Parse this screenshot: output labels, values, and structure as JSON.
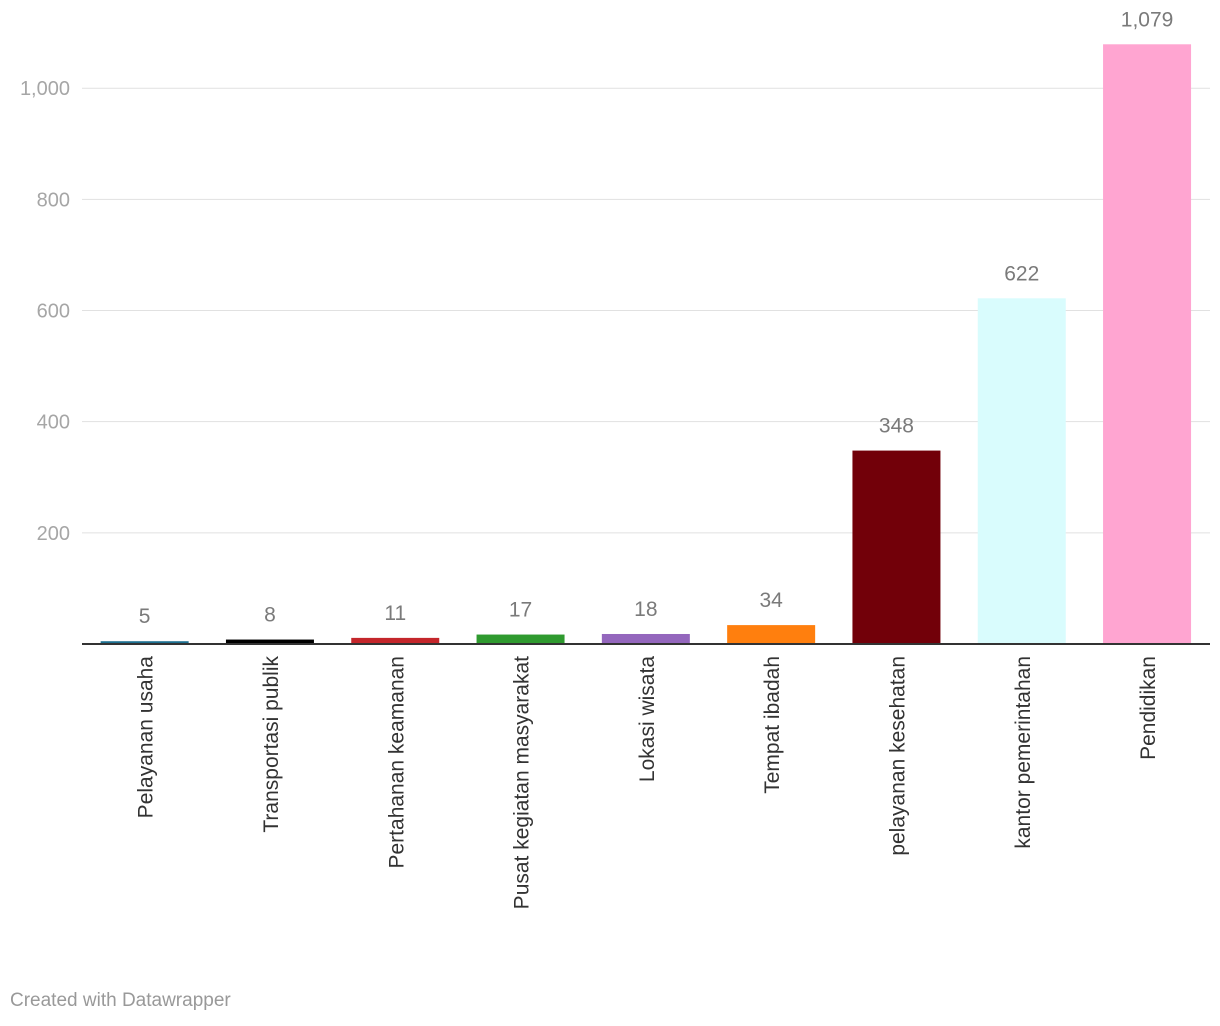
{
  "chart_data": {
    "type": "bar",
    "categories": [
      "Pelayanan usaha",
      "Transportasi publik",
      "Pertahanan keamanan",
      "Pusat kegiatan masyarakat",
      "Lokasi wisata",
      "Tempat ibadah",
      "pelayanan kesehatan",
      "kantor pemerintahan",
      "Pendidikan"
    ],
    "values": [
      5,
      8,
      11,
      17,
      18,
      34,
      348,
      622,
      1079
    ],
    "value_labels": [
      "5",
      "8",
      "11",
      "17",
      "18",
      "34",
      "348",
      "622",
      "1,079"
    ],
    "colors": [
      "#1d6f8f",
      "#000000",
      "#c4262b",
      "#2f9a2f",
      "#9467bd",
      "#ff7f0e",
      "#720009",
      "#d9fcfd",
      "#ffa5d1"
    ],
    "y_ticks": [
      200,
      400,
      600,
      800,
      1000
    ],
    "y_tick_labels": [
      "200",
      "400",
      "600",
      "800",
      "1,000"
    ],
    "ylim": [
      0,
      1079
    ],
    "grid": true
  },
  "footer": {
    "credit": "Created with Datawrapper"
  }
}
